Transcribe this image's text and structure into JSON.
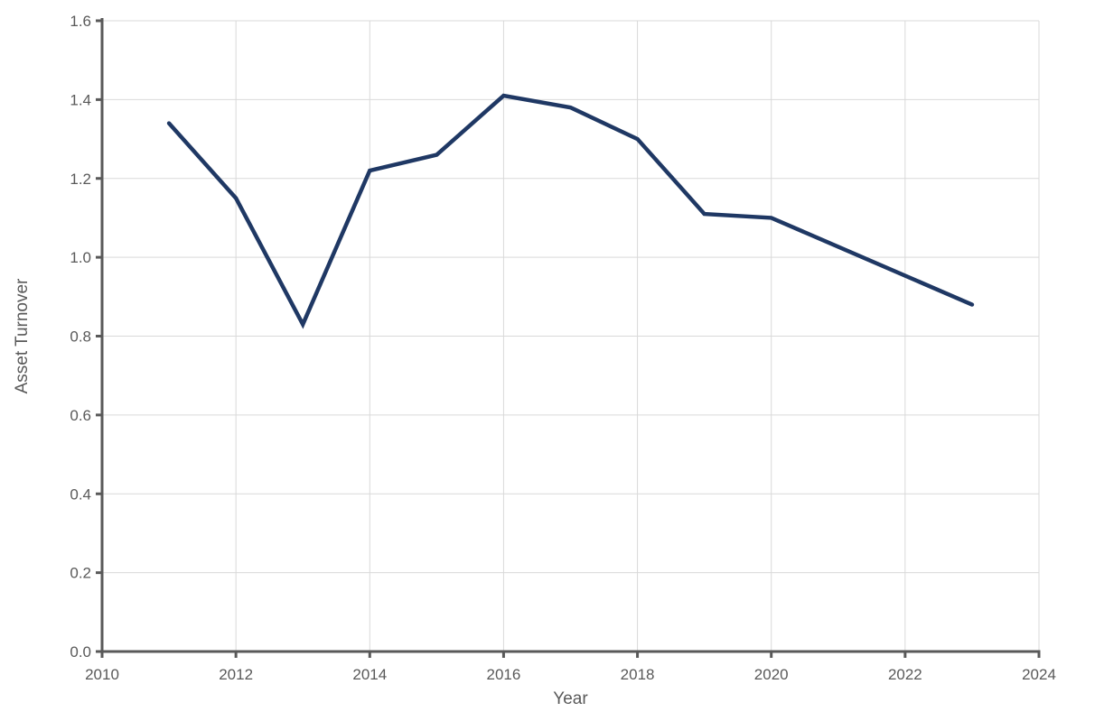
{
  "chart_data": {
    "type": "line",
    "title": "",
    "xlabel": "Year",
    "ylabel": "Asset Turnover",
    "series": [
      {
        "name": "Asset Turnover",
        "x": [
          2011,
          2012,
          2013,
          2014,
          2015,
          2016,
          2017,
          2018,
          2019,
          2020,
          2023
        ],
        "y": [
          1.34,
          1.15,
          0.83,
          1.22,
          1.26,
          1.41,
          1.38,
          1.3,
          1.11,
          1.1,
          0.88
        ]
      }
    ],
    "xlim": [
      2010,
      2024
    ],
    "ylim": [
      0,
      1.6
    ],
    "xticks": [
      2010,
      2012,
      2014,
      2016,
      2018,
      2020,
      2022,
      2024
    ],
    "yticks": [
      0,
      0.2,
      0.4,
      0.6,
      0.8,
      1.0,
      1.2,
      1.4,
      1.6
    ],
    "xtick_labels": [
      "2010",
      "2012",
      "2014",
      "2016",
      "2018",
      "2020",
      "2022",
      "2024"
    ],
    "ytick_labels": [
      "0.0",
      "0.2",
      "0.4",
      "0.6",
      "0.8",
      "1.0",
      "1.2",
      "1.4",
      "1.6"
    ],
    "grid": true,
    "legend": false,
    "colors": {
      "line": "#1f3864",
      "axis": "#595959",
      "gridline": "#d9d9d9",
      "text": "#595959",
      "background": "#ffffff"
    }
  }
}
